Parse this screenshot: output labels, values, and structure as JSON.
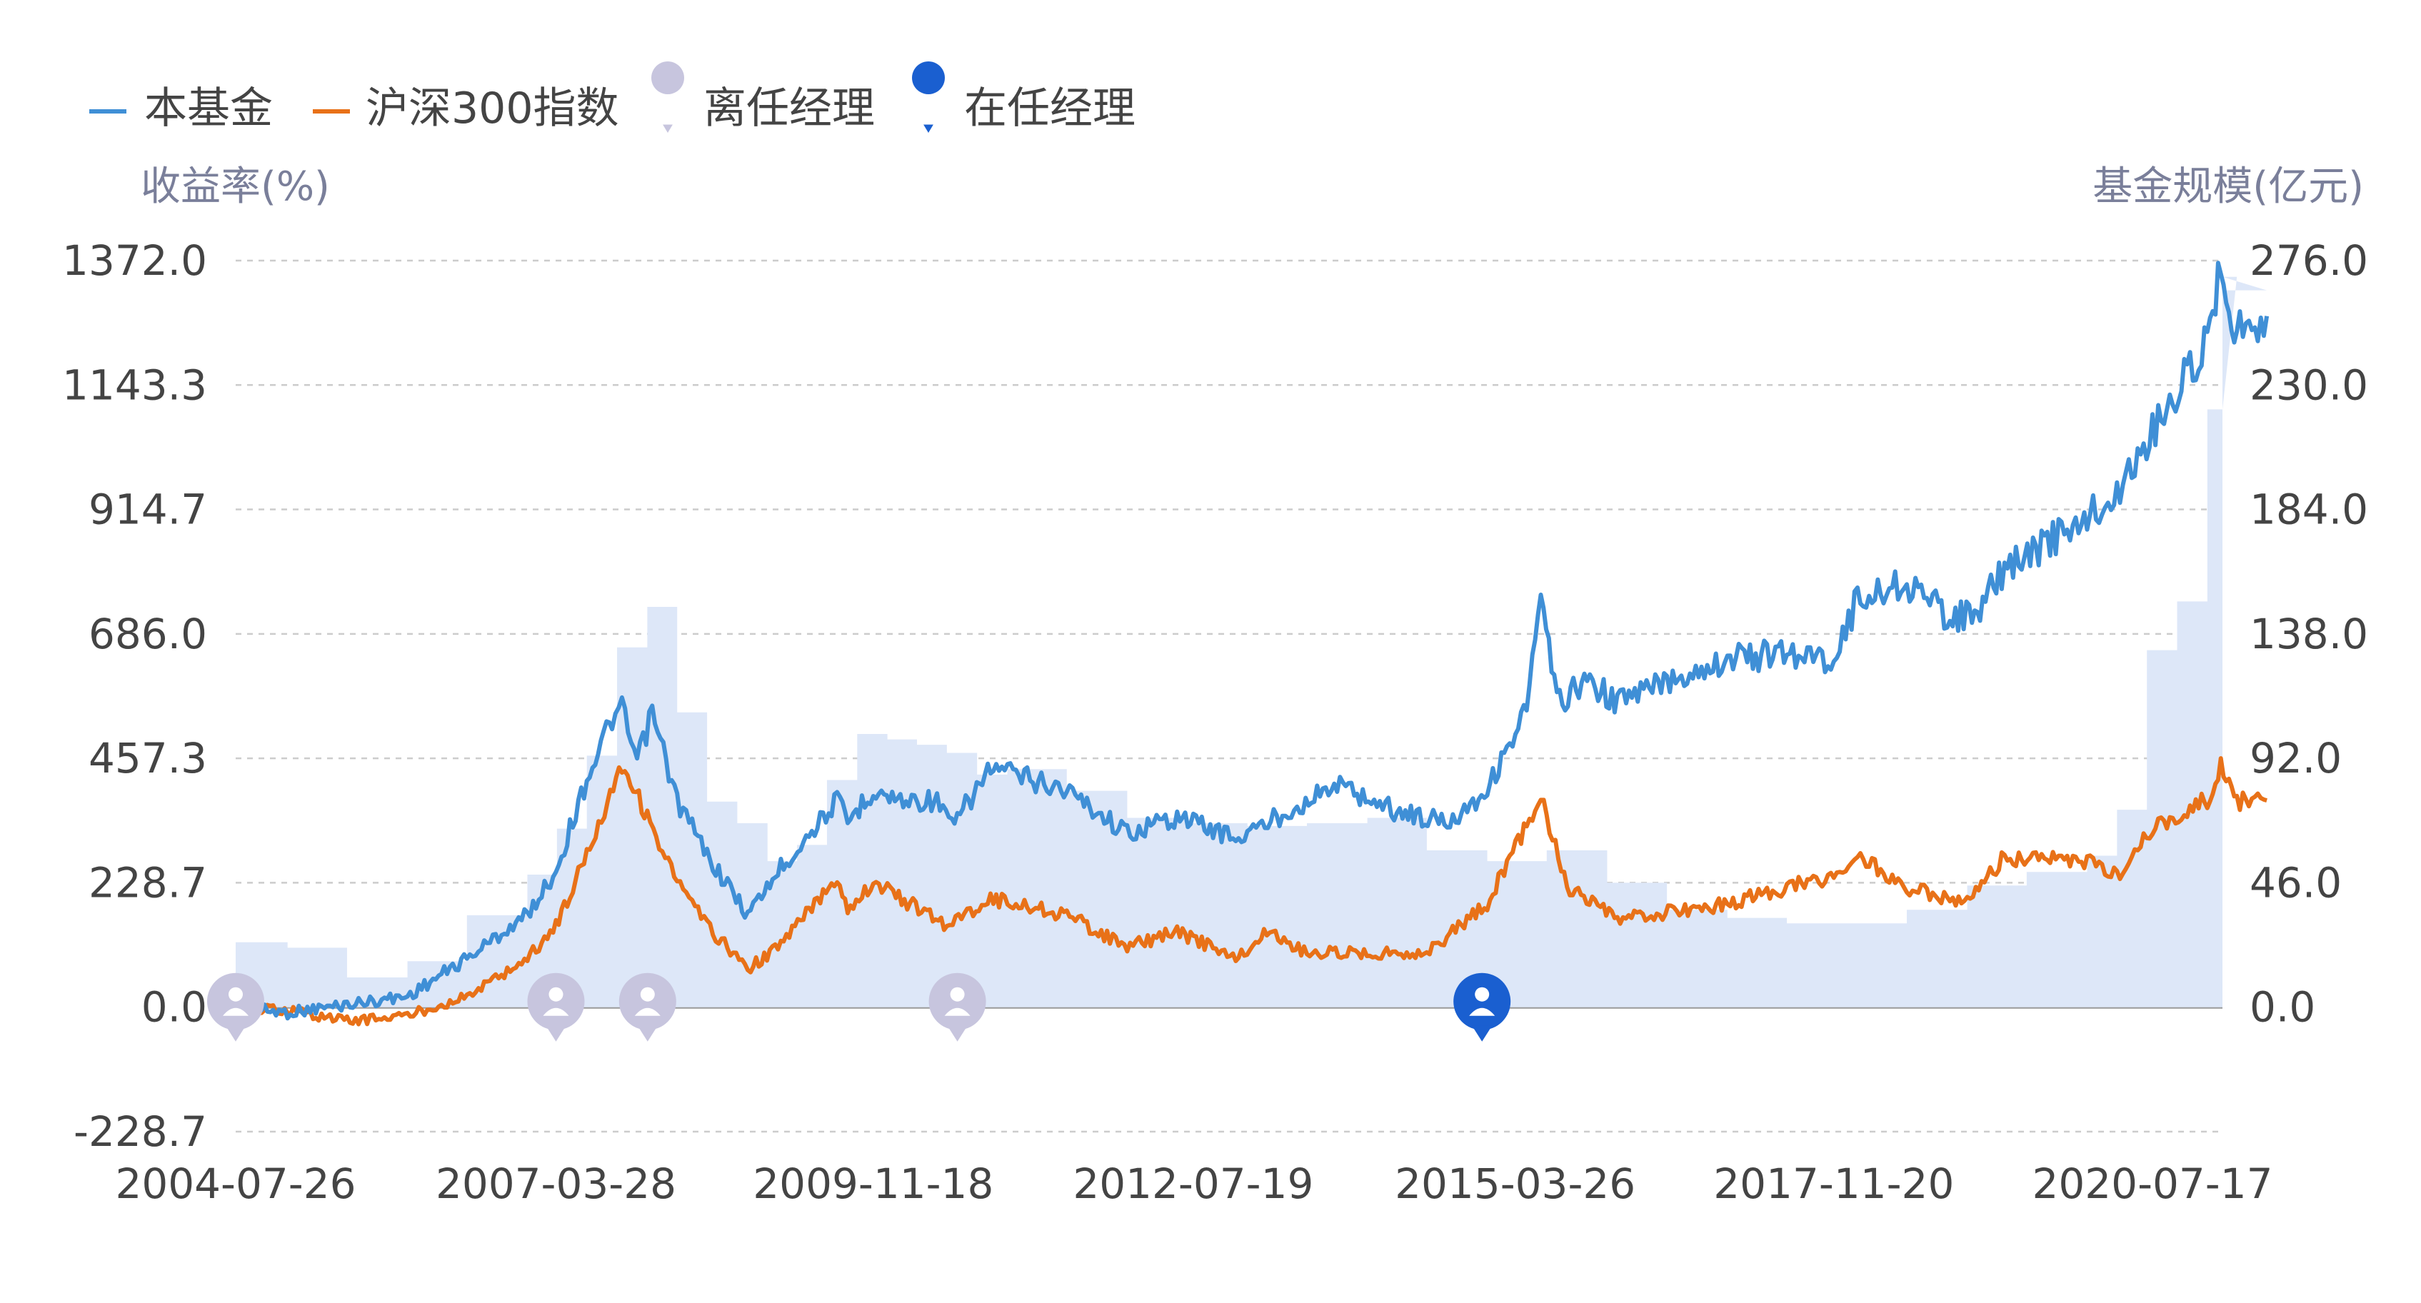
{
  "legend": {
    "fund": "本基金",
    "index": "沪深300指数",
    "former_manager": "离任经理",
    "current_manager": "在任经理"
  },
  "left_axis_title": "收益率(%)",
  "right_axis_title": "基金规模(亿元)",
  "colors": {
    "fund": "#3f8fd6",
    "index": "#e87118",
    "scale_fill": "#dde7f8",
    "former_manager": "#c7c5de",
    "current_manager": "#1a5fd0",
    "axis_text": "#444444",
    "title_text": "#7a7f9a",
    "grid": "#cccccc"
  },
  "chart_data": {
    "type": "line",
    "x_tick_labels": [
      "2004-07-26",
      "2007-03-28",
      "2009-11-18",
      "2012-07-19",
      "2015-03-26",
      "2017-11-20",
      "2020-07-17"
    ],
    "x_range": [
      "2004-07-26",
      "2021-02-15"
    ],
    "y_left_ticks": [
      "1372.0",
      "1143.3",
      "914.7",
      "686.0",
      "457.3",
      "228.7",
      "0.0",
      "-228.7"
    ],
    "y_left_range": [
      -228.7,
      1372.0
    ],
    "y_right_ticks": [
      "276.0",
      "230.0",
      "184.0",
      "138.0",
      "92.0",
      "46.0",
      "0.0"
    ],
    "y_right_range": [
      0,
      276.0
    ],
    "series": [
      {
        "name": "本基金",
        "axis": "left",
        "points": [
          [
            "2004-07-26",
            0
          ],
          [
            "2004-12-31",
            -10
          ],
          [
            "2005-06-30",
            5
          ],
          [
            "2005-12-31",
            20
          ],
          [
            "2006-06-30",
            90
          ],
          [
            "2006-12-31",
            170
          ],
          [
            "2007-03-28",
            250
          ],
          [
            "2007-06-30",
            420
          ],
          [
            "2007-09-15",
            530
          ],
          [
            "2007-10-15",
            545
          ],
          [
            "2007-11-30",
            450
          ],
          [
            "2008-01-15",
            540
          ],
          [
            "2008-03-31",
            380
          ],
          [
            "2008-06-30",
            280
          ],
          [
            "2008-11-01",
            170
          ],
          [
            "2009-02-01",
            250
          ],
          [
            "2009-07-31",
            380
          ],
          [
            "2009-09-01",
            340
          ],
          [
            "2009-11-18",
            400
          ],
          [
            "2010-01-31",
            380
          ],
          [
            "2010-05-31",
            380
          ],
          [
            "2010-07-15",
            330
          ],
          [
            "2010-11-10",
            440
          ],
          [
            "2011-06-30",
            400
          ],
          [
            "2011-12-31",
            320
          ],
          [
            "2012-05-31",
            350
          ],
          [
            "2012-07-19",
            340
          ],
          [
            "2012-12-04",
            310
          ],
          [
            "2013-05-31",
            370
          ],
          [
            "2013-09-30",
            410
          ],
          [
            "2014-03-31",
            360
          ],
          [
            "2014-08-31",
            340
          ],
          [
            "2014-12-31",
            400
          ],
          [
            "2015-04-30",
            550
          ],
          [
            "2015-06-12",
            750
          ],
          [
            "2015-07-31",
            560
          ],
          [
            "2015-10-31",
            600
          ],
          [
            "2016-01-31",
            560
          ],
          [
            "2016-06-30",
            600
          ],
          [
            "2016-12-31",
            640
          ],
          [
            "2017-06-30",
            650
          ],
          [
            "2017-11-20",
            640
          ],
          [
            "2018-01-31",
            750
          ],
          [
            "2018-06-30",
            780
          ],
          [
            "2018-10-31",
            720
          ],
          [
            "2019-01-31",
            720
          ],
          [
            "2019-04-15",
            800
          ],
          [
            "2019-12-31",
            900
          ],
          [
            "2020-03-31",
            940
          ],
          [
            "2020-07-17",
            1060
          ],
          [
            "2020-12-31",
            1220
          ],
          [
            "2021-02-10",
            1372
          ],
          [
            "2021-03-31",
            1240
          ],
          [
            "2021-06-30",
            1270
          ]
        ]
      },
      {
        "name": "沪深300指数",
        "axis": "left",
        "points": [
          [
            "2004-07-26",
            0
          ],
          [
            "2004-12-31",
            -5
          ],
          [
            "2005-06-30",
            -25
          ],
          [
            "2005-12-31",
            -15
          ],
          [
            "2006-06-30",
            20
          ],
          [
            "2006-12-31",
            90
          ],
          [
            "2007-03-28",
            150
          ],
          [
            "2007-06-30",
            280
          ],
          [
            "2007-10-15",
            450
          ],
          [
            "2007-12-31",
            350
          ],
          [
            "2008-03-31",
            230
          ],
          [
            "2008-06-30",
            150
          ],
          [
            "2008-11-01",
            70
          ],
          [
            "2009-02-01",
            110
          ],
          [
            "2009-07-31",
            240
          ],
          [
            "2009-09-01",
            180
          ],
          [
            "2009-11-18",
            230
          ],
          [
            "2010-06-30",
            150
          ],
          [
            "2010-11-10",
            200
          ],
          [
            "2011-06-30",
            170
          ],
          [
            "2011-12-31",
            110
          ],
          [
            "2012-05-31",
            140
          ],
          [
            "2012-07-19",
            125
          ],
          [
            "2012-12-04",
            90
          ],
          [
            "2013-02-28",
            140
          ],
          [
            "2013-06-30",
            100
          ],
          [
            "2014-06-30",
            100
          ],
          [
            "2014-12-31",
            190
          ],
          [
            "2015-06-12",
            390
          ],
          [
            "2015-08-31",
            220
          ],
          [
            "2016-01-31",
            160
          ],
          [
            "2016-12-31",
            190
          ],
          [
            "2017-06-30",
            220
          ],
          [
            "2017-11-20",
            240
          ],
          [
            "2018-01-31",
            280
          ],
          [
            "2018-06-30",
            220
          ],
          [
            "2018-12-31",
            190
          ],
          [
            "2019-04-15",
            270
          ],
          [
            "2019-12-31",
            270
          ],
          [
            "2020-03-31",
            240
          ],
          [
            "2020-07-17",
            330
          ],
          [
            "2020-12-31",
            380
          ],
          [
            "2021-02-10",
            440
          ],
          [
            "2021-03-31",
            380
          ],
          [
            "2021-06-30",
            380
          ]
        ]
      },
      {
        "name": "基金规模",
        "axis": "right",
        "type": "area",
        "points": [
          [
            "2004-07-26",
            24
          ],
          [
            "2004-12-31",
            22
          ],
          [
            "2005-06-30",
            11
          ],
          [
            "2005-12-31",
            17
          ],
          [
            "2006-06-30",
            34
          ],
          [
            "2006-09-30",
            34
          ],
          [
            "2006-12-31",
            49
          ],
          [
            "2007-03-31",
            66
          ],
          [
            "2007-06-30",
            93
          ],
          [
            "2007-09-30",
            133
          ],
          [
            "2007-12-31",
            148
          ],
          [
            "2008-03-31",
            109
          ],
          [
            "2008-06-30",
            76
          ],
          [
            "2008-09-30",
            68
          ],
          [
            "2008-12-31",
            54
          ],
          [
            "2009-03-31",
            60
          ],
          [
            "2009-06-30",
            84
          ],
          [
            "2009-09-30",
            101
          ],
          [
            "2009-12-31",
            99
          ],
          [
            "2010-03-31",
            97
          ],
          [
            "2010-06-30",
            94
          ],
          [
            "2010-09-30",
            86
          ],
          [
            "2010-12-31",
            88
          ],
          [
            "2011-06-30",
            80
          ],
          [
            "2011-12-31",
            70
          ],
          [
            "2012-06-30",
            68
          ],
          [
            "2012-12-31",
            67
          ],
          [
            "2013-06-30",
            68
          ],
          [
            "2013-12-31",
            70
          ],
          [
            "2014-06-30",
            58
          ],
          [
            "2014-12-31",
            54
          ],
          [
            "2015-06-30",
            58
          ],
          [
            "2015-12-31",
            46
          ],
          [
            "2016-06-30",
            36
          ],
          [
            "2016-12-31",
            33
          ],
          [
            "2017-06-30",
            31
          ],
          [
            "2017-12-31",
            31
          ],
          [
            "2018-06-30",
            36
          ],
          [
            "2018-12-31",
            45
          ],
          [
            "2019-06-30",
            50
          ],
          [
            "2019-12-31",
            56
          ],
          [
            "2020-03-31",
            73
          ],
          [
            "2020-06-30",
            132
          ],
          [
            "2020-09-30",
            150
          ],
          [
            "2020-12-31",
            221
          ],
          [
            "2021-03-31",
            270
          ],
          [
            "2021-06-30",
            265
          ]
        ]
      }
    ],
    "manager_changes": [
      {
        "date": "2004-07-26",
        "status": "离任经理"
      },
      {
        "date": "2007-03-28",
        "status": "离任经理"
      },
      {
        "date": "2008-01-01",
        "status": "离任经理"
      },
      {
        "date": "2010-08-01",
        "status": "离任经理"
      },
      {
        "date": "2014-12-15",
        "status": "在任经理"
      }
    ]
  }
}
